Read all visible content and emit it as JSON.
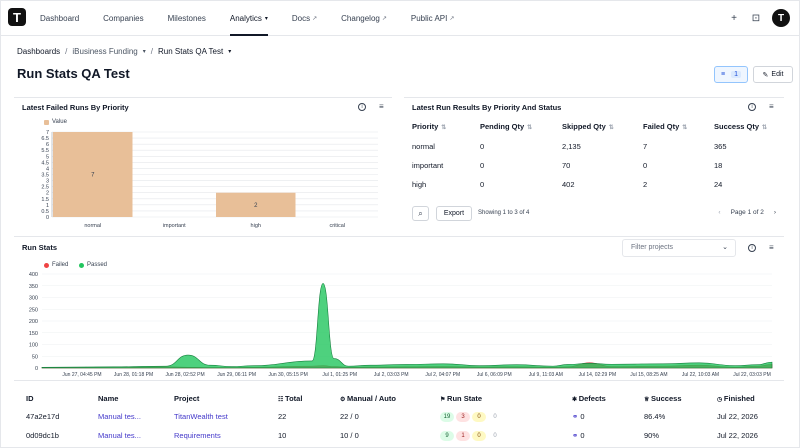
{
  "nav": {
    "logo": "T",
    "items": [
      {
        "label": "Dashboard"
      },
      {
        "label": "Companies"
      },
      {
        "label": "Milestones"
      },
      {
        "label": "Analytics"
      },
      {
        "label": "Docs"
      },
      {
        "label": "Changelog"
      },
      {
        "label": "Public API"
      }
    ],
    "avatar": "T"
  },
  "breadcrumb": {
    "root": "Dashboards",
    "project": "iBusiness Funding",
    "current": "Run Stats QA Test"
  },
  "page": {
    "title": "Run Stats QA Test",
    "filter_count": "1",
    "edit_label": "Edit"
  },
  "failed_panel": {
    "title": "Latest Failed Runs By Priority",
    "legend": "Value"
  },
  "results_panel": {
    "title": "Latest Run Results By Priority And Status",
    "columns": [
      "Priority",
      "Pending Qty",
      "Skipped Qty",
      "Failed Qty",
      "Success Qty"
    ],
    "rows": [
      [
        "normal",
        "0",
        "2,135",
        "7",
        "365"
      ],
      [
        "important",
        "0",
        "70",
        "0",
        "18"
      ],
      [
        "high",
        "0",
        "402",
        "2",
        "24"
      ]
    ],
    "export_label": "Export",
    "showing": "Showing 1 to 3 of 4",
    "page": "Page 1 of 2"
  },
  "runstats_panel": {
    "title": "Run Stats",
    "filter_placeholder": "Filter projects",
    "legend": [
      "Failed",
      "Passed"
    ]
  },
  "chart_data": [
    {
      "type": "bar",
      "title": "Latest Failed Runs By Priority",
      "categories": [
        "normal",
        "important",
        "high",
        "critical"
      ],
      "values": [
        7,
        0,
        2,
        0
      ],
      "series": [
        {
          "name": "Value",
          "values": [
            7,
            0,
            2,
            0
          ]
        }
      ],
      "ylim": [
        0,
        7
      ],
      "yticks": [
        "0",
        "0.5",
        "1",
        "1.5",
        "2",
        "2.5",
        "3",
        "3.5",
        "4",
        "4.5",
        "5",
        "5.5",
        "6",
        "6.5",
        "7"
      ],
      "colors": [
        "#e8bf98"
      ]
    },
    {
      "type": "area",
      "title": "Run Stats",
      "ylim": [
        0,
        400
      ],
      "yticks": [
        "0",
        "50",
        "100",
        "150",
        "200",
        "250",
        "300",
        "350",
        "400"
      ],
      "xticks": [
        "Jun 27, 04:45 PM",
        "Jun 28, 01:18 PM",
        "Jun 28, 02:52 PM",
        "Jun 29, 06:11 PM",
        "Jun 30, 05:15 PM",
        "Jul 1, 01:25 PM",
        "Jul 2, 03:03 PM",
        "Jul 2, 04:07 PM",
        "Jul 6, 06:09 PM",
        "Jul 9, 11:03 AM",
        "Jul 14, 02:29 PM",
        "Jul 15, 08:25 AM",
        "Jul 22, 10:03 AM",
        "Jul 22, 03:03 PM"
      ],
      "x": [
        0,
        0.1,
        0.17,
        0.2,
        0.23,
        0.26,
        0.29,
        0.37,
        0.385,
        0.4,
        0.42,
        0.45,
        0.5,
        0.55,
        0.6,
        0.65,
        0.7,
        0.72,
        0.75,
        0.78,
        0.85,
        0.9,
        0.95,
        0.98,
        1.0
      ],
      "series": [
        {
          "name": "Failed",
          "color": "#ef4444",
          "values": [
            2,
            2,
            5,
            3,
            2,
            2,
            3,
            8,
            10,
            6,
            3,
            4,
            5,
            6,
            4,
            5,
            3,
            5,
            22,
            6,
            8,
            12,
            3,
            8,
            15
          ]
        },
        {
          "name": "Passed",
          "color": "#22c55e",
          "values": [
            3,
            5,
            8,
            55,
            12,
            6,
            10,
            30,
            360,
            40,
            8,
            12,
            15,
            18,
            10,
            14,
            8,
            15,
            20,
            16,
            18,
            22,
            10,
            14,
            25
          ]
        }
      ]
    }
  ],
  "bottom_table": {
    "columns": [
      "ID",
      "Name",
      "Project",
      "Total",
      "Manual / Auto",
      "Run State",
      "Defects",
      "Success",
      "Finished"
    ],
    "rows": [
      {
        "id": "47a2e17d",
        "name": "Manual tes...",
        "project": "TitanWealth test",
        "total": "22",
        "manual_auto": "22 / 0",
        "passed": "19",
        "failed": "3",
        "skipped": "0",
        "pending": "0",
        "defects": "0",
        "success": "86.4%",
        "finished": "Jul 22, 2026"
      },
      {
        "id": "0d09dc1b",
        "name": "Manual tes...",
        "project": "Requirements",
        "total": "10",
        "manual_auto": "10 / 0",
        "passed": "9",
        "failed": "1",
        "skipped": "0",
        "pending": "0",
        "defects": "0",
        "success": "90%",
        "finished": "Jul 22, 2026"
      }
    ]
  }
}
